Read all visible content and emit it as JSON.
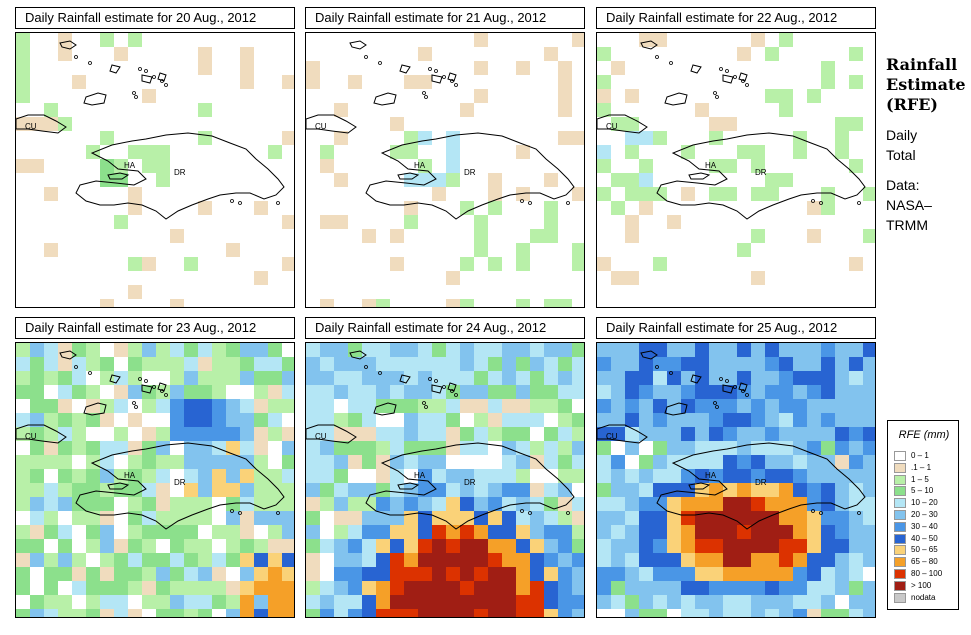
{
  "panels": [
    {
      "title": "Daily Rainfall estimate for  20 Aug., 2012",
      "seed": 11,
      "scenario": "dry1"
    },
    {
      "title": "Daily Rainfall estimate for  21 Aug., 2012",
      "seed": 23,
      "scenario": "dry2"
    },
    {
      "title": "Daily Rainfall estimate for  22 Aug., 2012",
      "seed": 37,
      "scenario": "dry3"
    },
    {
      "title": "Daily Rainfall estimate for  23 Aug., 2012",
      "seed": 41,
      "scenario": "med"
    },
    {
      "title": "Daily Rainfall estimate for  24 Aug., 2012",
      "seed": 53,
      "scenario": "heavySE"
    },
    {
      "title": "Daily Rainfall estimate for  25 Aug., 2012",
      "seed": 67,
      "scenario": "heavyHA"
    }
  ],
  "map_labels": {
    "cuba": "CU",
    "haiti": "HA",
    "dominican_republic": "DR"
  },
  "side": {
    "title_line1": "Rainfall",
    "title_line2": "Estimate",
    "title_line3": "(RFE)",
    "daily_line1": "Daily",
    "daily_line2": "Total",
    "source_line1": "Data:",
    "source_line2": "NASA–",
    "source_line3": "TRMM"
  },
  "legend": {
    "title": "RFE (mm)",
    "items": [
      {
        "label": "0 – 1",
        "color": "#ffffff"
      },
      {
        "label": ".1 – 1",
        "color": "#f0dcbe"
      },
      {
        "label": "1 – 5",
        "color": "#b8f0a8"
      },
      {
        "label": "5 – 10",
        "color": "#8ce08c"
      },
      {
        "label": "10 – 20",
        "color": "#b4e6f5"
      },
      {
        "label": "20 – 30",
        "color": "#82c3ee"
      },
      {
        "label": "30 – 40",
        "color": "#4a96e6"
      },
      {
        "label": "40 – 50",
        "color": "#2864d2"
      },
      {
        "label": "50 – 65",
        "color": "#fad278"
      },
      {
        "label": "65 – 80",
        "color": "#f5a028"
      },
      {
        "label": "80 – 100",
        "color": "#dc3200"
      },
      {
        "label": "> 100",
        "color": "#a01e14"
      },
      {
        "label": "nodata",
        "color": "#c8c8c8"
      }
    ]
  }
}
